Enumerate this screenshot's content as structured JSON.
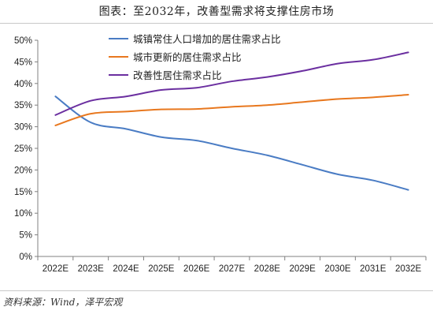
{
  "title": "图表：至2032年，改善型需求将支撑住房市场",
  "source": "资料来源：Wind，泽平宏观",
  "colors": {
    "series_blue": "#4a7cc4",
    "series_orange": "#e8781f",
    "series_purple": "#6b2fa0",
    "axis": "#808080"
  },
  "chart_data": {
    "type": "line",
    "title": "",
    "xlabel": "",
    "ylabel": "",
    "categories": [
      "2022E",
      "2023E",
      "2024E",
      "2025E",
      "2026E",
      "2027E",
      "2028E",
      "2029E",
      "2030E",
      "2031E",
      "2032E"
    ],
    "ylim": [
      0,
      50
    ],
    "yticks": [
      0,
      5,
      10,
      15,
      20,
      25,
      30,
      35,
      40,
      45,
      50
    ],
    "ytick_labels": [
      "0%",
      "5%",
      "10%",
      "15%",
      "20%",
      "25%",
      "30%",
      "35%",
      "40%",
      "45%",
      "50%"
    ],
    "grid": false,
    "legend_position": "top-center",
    "series": [
      {
        "name": "城镇常住人口增加的居住需求占比",
        "values": [
          37.0,
          31.0,
          29.5,
          27.6,
          26.8,
          25.0,
          23.4,
          21.2,
          19.0,
          17.6,
          15.4
        ]
      },
      {
        "name": "城市更新的居住需求占比",
        "values": [
          30.3,
          33.0,
          33.5,
          34.0,
          34.1,
          34.6,
          35.0,
          35.7,
          36.4,
          36.8,
          37.4
        ]
      },
      {
        "name": "改善性居住需求占比",
        "values": [
          32.7,
          36.0,
          37.0,
          38.5,
          39.0,
          40.5,
          41.5,
          42.9,
          44.6,
          45.5,
          47.2
        ]
      }
    ]
  }
}
